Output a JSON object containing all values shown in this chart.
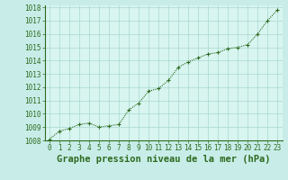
{
  "x": [
    0,
    1,
    2,
    3,
    4,
    5,
    6,
    7,
    8,
    9,
    10,
    11,
    12,
    13,
    14,
    15,
    16,
    17,
    18,
    19,
    20,
    21,
    22,
    23
  ],
  "y": [
    1008.1,
    1008.7,
    1008.9,
    1009.2,
    1009.3,
    1009.0,
    1009.1,
    1009.2,
    1010.3,
    1010.8,
    1011.7,
    1011.9,
    1012.5,
    1013.5,
    1013.9,
    1014.2,
    1014.5,
    1014.6,
    1014.9,
    1015.0,
    1015.2,
    1016.0,
    1017.0,
    1017.8
  ],
  "ylim": [
    1008,
    1018
  ],
  "xlim": [
    -0.5,
    23.5
  ],
  "yticks": [
    1008,
    1009,
    1010,
    1011,
    1012,
    1013,
    1014,
    1015,
    1016,
    1017,
    1018
  ],
  "xticks": [
    0,
    1,
    2,
    3,
    4,
    5,
    6,
    7,
    8,
    9,
    10,
    11,
    12,
    13,
    14,
    15,
    16,
    17,
    18,
    19,
    20,
    21,
    22,
    23
  ],
  "xlabel": "Graphe pression niveau de la mer (hPa)",
  "line_color": "#2d6a1f",
  "marker": "+",
  "bg_color": "#c8ede8",
  "plot_bg_color": "#d8f5f0",
  "grid_color": "#a8d8d0",
  "tick_color": "#2d6a1f",
  "label_color": "#2d6a1f",
  "border_color": "#2d6a1f",
  "tick_fontsize": 5.5,
  "xlabel_fontsize": 7.5
}
